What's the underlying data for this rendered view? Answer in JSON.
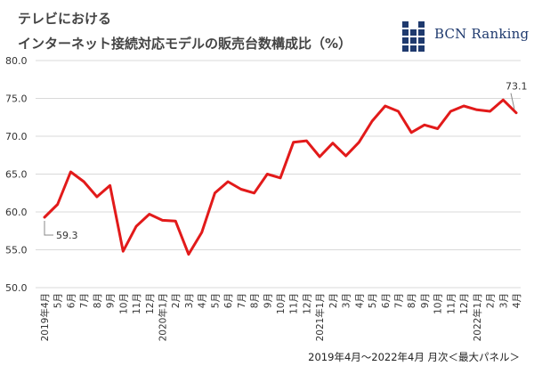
{
  "header": {
    "title_line1": "テレビにおける",
    "title_line2": "インターネット接続対応モデルの販売台数構成比（%）"
  },
  "logo": {
    "text": "BCN Ranking",
    "color": "#1f3a6e"
  },
  "footer": {
    "note": "2019年4月～2022年4月 月次＜最大パネル＞"
  },
  "chart_data": {
    "type": "line",
    "title": "テレビにおけるインターネット接続対応モデルの販売台数構成比（%）",
    "ylim": [
      50,
      80
    ],
    "yticks": [
      "50.0",
      "55.0",
      "60.0",
      "65.0",
      "70.0",
      "75.0",
      "80.0"
    ],
    "grid": true,
    "line_color": "#e21a1a",
    "categories": [
      "2019年4月",
      "5月",
      "6月",
      "7月",
      "8月",
      "9月",
      "10月",
      "11月",
      "12月",
      "2020年1月",
      "2月",
      "3月",
      "4月",
      "5月",
      "6月",
      "7月",
      "8月",
      "9月",
      "10月",
      "11月",
      "12月",
      "2021年1月",
      "2月",
      "3月",
      "4月",
      "5月",
      "6月",
      "7月",
      "8月",
      "9月",
      "10月",
      "11月",
      "12月",
      "2022年1月",
      "2月",
      "3月",
      "4月"
    ],
    "values": [
      59.3,
      61.0,
      65.3,
      64.0,
      62.0,
      63.5,
      54.8,
      58.1,
      59.7,
      58.9,
      58.8,
      54.4,
      57.3,
      62.5,
      64.0,
      63.0,
      62.5,
      65.0,
      64.5,
      69.2,
      69.4,
      67.3,
      69.1,
      67.4,
      69.2,
      72.0,
      74.0,
      73.3,
      70.5,
      71.5,
      71.0,
      73.3,
      74.0,
      73.5,
      73.3,
      74.8,
      73.1
    ],
    "annotations": [
      {
        "index": 0,
        "text": "59.3"
      },
      {
        "index": 36,
        "text": "73.1"
      }
    ]
  }
}
